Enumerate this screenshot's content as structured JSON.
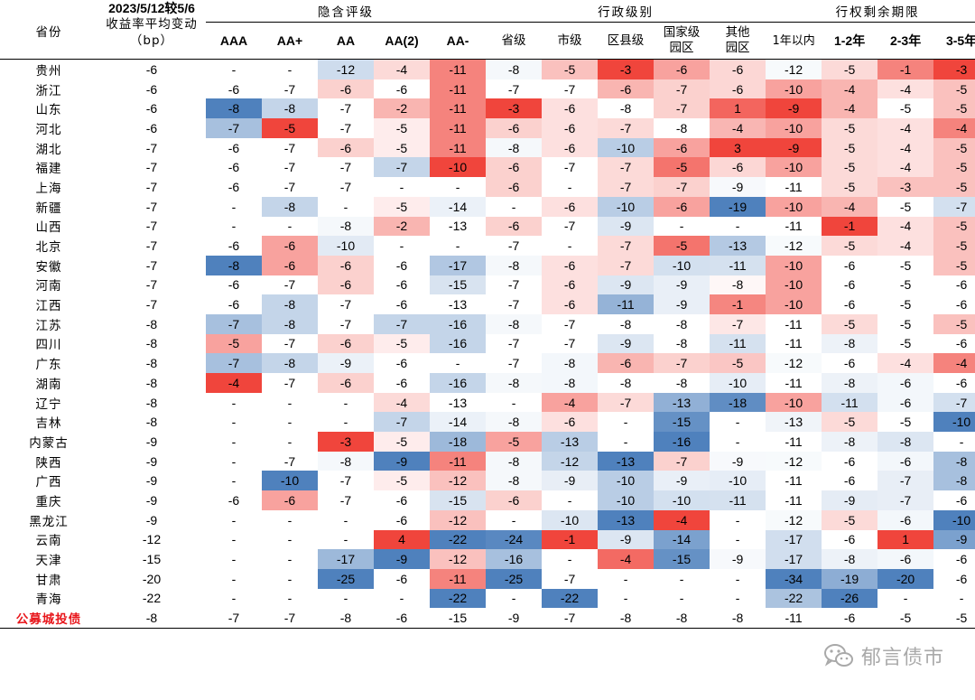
{
  "header": {
    "province": "省份",
    "change_top": "2023/5/12较5/6",
    "change_bottom": "收益率平均变动（bp）",
    "groups": [
      {
        "label": "隐含评级",
        "columns": [
          "AAA",
          "AA+",
          "AA",
          "AA(2)",
          "AA-"
        ]
      },
      {
        "label": "行政级别",
        "columns": [
          "省级",
          "市级",
          "区县级",
          "国家级园区",
          "其他园区"
        ]
      },
      {
        "label": "行权剩余期限",
        "columns": [
          "1年以内",
          "1-2年",
          "2-3年",
          "3-5年"
        ]
      }
    ]
  },
  "colors": {
    "negative_extreme": "#4f81bd",
    "positive_extreme": "#f0453c",
    "neutral": "#ffffff",
    "total_label": "#e8161b"
  },
  "rows": [
    {
      "province": "贵州",
      "avg": "-6",
      "values": [
        "-",
        "-",
        "-12",
        "-4",
        "-11",
        "-8",
        "-5",
        "-3",
        "-6",
        "-6",
        "-12",
        "-5",
        "-1",
        "-3"
      ]
    },
    {
      "province": "浙江",
      "avg": "-6",
      "values": [
        "-6",
        "-7",
        "-6",
        "-6",
        "-11",
        "-7",
        "-7",
        "-6",
        "-7",
        "-6",
        "-10",
        "-4",
        "-4",
        "-5"
      ]
    },
    {
      "province": "山东",
      "avg": "-6",
      "values": [
        "-8",
        "-8",
        "-7",
        "-2",
        "-11",
        "-3",
        "-6",
        "-8",
        "-7",
        "1",
        "-9",
        "-4",
        "-5",
        "-5"
      ]
    },
    {
      "province": "河北",
      "avg": "-6",
      "values": [
        "-7",
        "-5",
        "-7",
        "-5",
        "-11",
        "-6",
        "-6",
        "-7",
        "-8",
        "-4",
        "-10",
        "-5",
        "-4",
        "-4"
      ]
    },
    {
      "province": "湖北",
      "avg": "-7",
      "values": [
        "-6",
        "-7",
        "-6",
        "-5",
        "-11",
        "-8",
        "-6",
        "-10",
        "-6",
        "3",
        "-9",
        "-5",
        "-4",
        "-5"
      ]
    },
    {
      "province": "福建",
      "avg": "-7",
      "values": [
        "-6",
        "-7",
        "-7",
        "-7",
        "-10",
        "-6",
        "-7",
        "-7",
        "-5",
        "-6",
        "-10",
        "-5",
        "-4",
        "-5"
      ]
    },
    {
      "province": "上海",
      "avg": "-7",
      "values": [
        "-6",
        "-7",
        "-7",
        "-",
        "-",
        "-6",
        "-",
        "-7",
        "-7",
        "-9",
        "-11",
        "-5",
        "-3",
        "-5"
      ]
    },
    {
      "province": "新疆",
      "avg": "-7",
      "values": [
        "-",
        "-8",
        "-",
        "-5",
        "-14",
        "-",
        "-6",
        "-10",
        "-6",
        "-19",
        "-10",
        "-4",
        "-5",
        "-7"
      ]
    },
    {
      "province": "山西",
      "avg": "-7",
      "values": [
        "-",
        "-",
        "-8",
        "-2",
        "-13",
        "-6",
        "-7",
        "-9",
        "-",
        "-",
        "-11",
        "-1",
        "-4",
        "-5"
      ]
    },
    {
      "province": "北京",
      "avg": "-7",
      "values": [
        "-6",
        "-6",
        "-10",
        "-",
        "-",
        "-7",
        "-",
        "-7",
        "-5",
        "-13",
        "-12",
        "-5",
        "-4",
        "-5"
      ]
    },
    {
      "province": "安徽",
      "avg": "-7",
      "values": [
        "-8",
        "-6",
        "-6",
        "-6",
        "-17",
        "-8",
        "-6",
        "-7",
        "-10",
        "-11",
        "-10",
        "-6",
        "-5",
        "-5"
      ]
    },
    {
      "province": "河南",
      "avg": "-7",
      "values": [
        "-6",
        "-7",
        "-6",
        "-6",
        "-15",
        "-7",
        "-6",
        "-9",
        "-9",
        "-8",
        "-10",
        "-6",
        "-5",
        "-6"
      ]
    },
    {
      "province": "江西",
      "avg": "-7",
      "values": [
        "-6",
        "-8",
        "-7",
        "-6",
        "-13",
        "-7",
        "-6",
        "-11",
        "-9",
        "-1",
        "-10",
        "-6",
        "-5",
        "-6"
      ]
    },
    {
      "province": "江苏",
      "avg": "-8",
      "values": [
        "-7",
        "-8",
        "-7",
        "-7",
        "-16",
        "-8",
        "-7",
        "-8",
        "-8",
        "-7",
        "-11",
        "-5",
        "-5",
        "-5"
      ]
    },
    {
      "province": "四川",
      "avg": "-8",
      "values": [
        "-5",
        "-7",
        "-6",
        "-5",
        "-16",
        "-7",
        "-7",
        "-9",
        "-8",
        "-11",
        "-11",
        "-8",
        "-5",
        "-6"
      ]
    },
    {
      "province": "广东",
      "avg": "-8",
      "values": [
        "-7",
        "-8",
        "-9",
        "-6",
        "-",
        "-7",
        "-8",
        "-6",
        "-7",
        "-5",
        "-12",
        "-6",
        "-4",
        "-4"
      ]
    },
    {
      "province": "湖南",
      "avg": "-8",
      "values": [
        "-4",
        "-7",
        "-6",
        "-6",
        "-16",
        "-8",
        "-8",
        "-8",
        "-8",
        "-10",
        "-11",
        "-8",
        "-6",
        "-6"
      ]
    },
    {
      "province": "辽宁",
      "avg": "-8",
      "values": [
        "-",
        "-",
        "-",
        "-4",
        "-13",
        "-",
        "-4",
        "-7",
        "-13",
        "-18",
        "-10",
        "-11",
        "-6",
        "-7"
      ]
    },
    {
      "province": "吉林",
      "avg": "-8",
      "values": [
        "-",
        "-",
        "-",
        "-7",
        "-14",
        "-8",
        "-6",
        "-",
        "-15",
        "-",
        "-13",
        "-5",
        "-5",
        "-10"
      ]
    },
    {
      "province": "内蒙古",
      "avg": "-9",
      "values": [
        "-",
        "-",
        "-3",
        "-5",
        "-18",
        "-5",
        "-13",
        "-",
        "-16",
        "-",
        "-11",
        "-8",
        "-8",
        "-"
      ]
    },
    {
      "province": "陕西",
      "avg": "-9",
      "values": [
        "-",
        "-7",
        "-8",
        "-9",
        "-11",
        "-8",
        "-12",
        "-13",
        "-7",
        "-9",
        "-12",
        "-6",
        "-6",
        "-8"
      ]
    },
    {
      "province": "广西",
      "avg": "-9",
      "values": [
        "-",
        "-10",
        "-7",
        "-5",
        "-12",
        "-8",
        "-9",
        "-10",
        "-9",
        "-10",
        "-11",
        "-6",
        "-7",
        "-8"
      ]
    },
    {
      "province": "重庆",
      "avg": "-9",
      "values": [
        "-6",
        "-6",
        "-7",
        "-6",
        "-15",
        "-6",
        "-",
        "-10",
        "-10",
        "-11",
        "-11",
        "-9",
        "-7",
        "-6"
      ]
    },
    {
      "province": "黑龙江",
      "avg": "-9",
      "values": [
        "-",
        "-",
        "-",
        "-6",
        "-12",
        "-",
        "-10",
        "-13",
        "-4",
        "-",
        "-12",
        "-5",
        "-6",
        "-10"
      ]
    },
    {
      "province": "云南",
      "avg": "-12",
      "values": [
        "-",
        "-",
        "-",
        "4",
        "-22",
        "-24",
        "-1",
        "-9",
        "-14",
        "-",
        "-17",
        "-6",
        "1",
        "-9"
      ]
    },
    {
      "province": "天津",
      "avg": "-15",
      "values": [
        "-",
        "-",
        "-17",
        "-9",
        "-12",
        "-16",
        "-",
        "-4",
        "-15",
        "-9",
        "-17",
        "-8",
        "-6",
        "-6"
      ]
    },
    {
      "province": "甘肃",
      "avg": "-20",
      "values": [
        "-",
        "-",
        "-25",
        "-6",
        "-11",
        "-25",
        "-7",
        "-",
        "-",
        "-",
        "-34",
        "-19",
        "-20",
        "-6"
      ]
    },
    {
      "province": "青海",
      "avg": "-22",
      "values": [
        "-",
        "-",
        "-",
        "-",
        "-22",
        "-",
        "-22",
        "-",
        "-",
        "-",
        "-22",
        "-26",
        "-",
        "-"
      ]
    },
    {
      "province": "公募城投债",
      "avg": "-8",
      "values": [
        "-7",
        "-7",
        "-8",
        "-6",
        "-15",
        "-9",
        "-7",
        "-8",
        "-8",
        "-8",
        "-11",
        "-6",
        "-5",
        "-5"
      ],
      "is_total": true
    }
  ],
  "watermark": "郁言债市",
  "watermark_icon": "wechat-icon"
}
